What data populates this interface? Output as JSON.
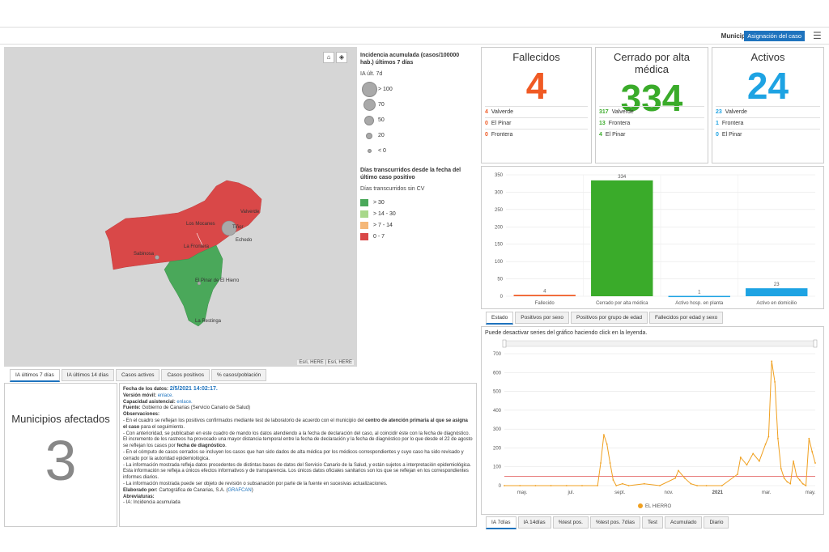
{
  "topbar": {
    "label": "Municipio",
    "button": "Asignación del caso",
    "menu_icon": "hamburger-icon"
  },
  "map": {
    "places": [
      "Valverde",
      "Los Mocanes",
      "Tiñor",
      "La Frontera",
      "Echedo",
      "Sabinosa",
      "El Pinar de El Hierro",
      "La Restinga"
    ],
    "attribution": "Esri, HERE | Esri, HERE",
    "buttons": [
      "home-icon",
      "layers-icon"
    ],
    "colors": {
      "red": "#d94848",
      "green": "#4aa85a"
    },
    "tabs": [
      "IA últimos 7 días",
      "IA últimos 14 días",
      "Casos activos",
      "Casos positivos",
      "% casos/población"
    ]
  },
  "legend": {
    "title1": "Incidencia acumulada (casos/100000 hab.) últimos 7 días",
    "sub1": "IA últ. 7d",
    "circles": [
      "> 100",
      "70",
      "50",
      "20",
      "< 0"
    ],
    "title2": "Días transcurridos desde la fecha del último caso positivo",
    "sub2": "Días transcurridos sin CV",
    "classes": [
      {
        "label": "> 30",
        "color": "#4aa85a"
      },
      {
        "label": "> 14 - 30",
        "color": "#a8d88a"
      },
      {
        "label": "> 7 - 14",
        "color": "#f5b879"
      },
      {
        "label": "0 - 7",
        "color": "#d94848"
      }
    ]
  },
  "kpis": [
    {
      "title": "Fallecidos",
      "value": "4",
      "color": "#f05a24",
      "rows": [
        {
          "n": "4",
          "name": "Valverde"
        },
        {
          "n": "0",
          "name": "El Pinar"
        },
        {
          "n": "0",
          "name": "Frontera"
        }
      ]
    },
    {
      "title": "Cerrado por alta médica",
      "value": "334",
      "color": "#3aab2a",
      "rows": [
        {
          "n": "317",
          "name": "Valverde"
        },
        {
          "n": "13",
          "name": "Frontera"
        },
        {
          "n": "4",
          "name": "El Pinar"
        }
      ]
    },
    {
      "title": "Activos",
      "value": "24",
      "color": "#1ea3e3",
      "rows": [
        {
          "n": "23",
          "name": "Valverde"
        },
        {
          "n": "1",
          "name": "Frontera"
        },
        {
          "n": "0",
          "name": "El Pinar"
        }
      ]
    }
  ],
  "bar_tabs": [
    "Estado",
    "Positivos por sexo",
    "Positivos por grupo de edad",
    "Fallecidos por edad y sexo"
  ],
  "line_note": "Puede desactivar series del gráfico haciendo click en la leyenda.",
  "line_tabs": [
    "IA 7días",
    "IA 14días",
    "%test pos.",
    "%test pos. 7días",
    "Test",
    "Acumulado",
    "Diario"
  ],
  "municipios": {
    "title": "Municipios afectados",
    "value": "3"
  },
  "info": {
    "fecha_label": "Fecha de los datos:",
    "fecha": "2/5/2021 14:02:17.",
    "movil_label": "Versión móvil:",
    "movil": "enlace.",
    "capacidad_label": "Capacidad asistencial:",
    "capacidad": "enlace.",
    "fuente_label": "Fuente:",
    "fuente": "Gobierno de Canarias (Servicio Canario de Salud)",
    "obs_label": "Observaciones:",
    "obs1": "- En el cuadro se reflejan los positivos confirmados mediante test de laboratorio de acuerdo con el municipio del",
    "obs1b": "centro de atención primaria al que se asigna el caso",
    "obs1c": "para el seguimiento.",
    "obs2": "- Con anterioridad, se publicaban en este cuadro de mando los datos atendiendo a la fecha de declaración del caso, al coincidir éste con la fecha de diagnóstico. El incremento de los rastreos ha provocado una mayor distancia temporal entre la fecha de declaración y la fecha de diagnóstico por lo que desde el 22 de agosto se reflejan los casos por",
    "obs2b": "fecha de diagnóstico",
    "obs3": "- En el cómputo de casos cerrados se incluyen los casos que han sido dados de alta médica por los médicos correspondientes y cuyo caso ha sido revisado y cerrado por la autoridad epidemiológica.",
    "obs4": "- La información mostrada refleja datos procedentes de distintas bases de datos del Servicio Canario de la Salud, y están sujetos a interpretación epidemiológica. Esta información se refleja a únicos efectos informativos y de transparencia. Los únicos datos oficiales sanitarios son los que se reflejan en los correspondientes informes diarios.",
    "obs5": "- La información mostrada puede ser objeto de revisión o subsanación por parte de la fuente en sucesivas actualizaciones.",
    "elab_label": "Elaborado por:",
    "elab": "Cartográfica de Canarias, S.A. (",
    "elab_link": "GRAFCAN",
    "elab_end": ")",
    "abrev_label": "Abreviaturas:",
    "abrev": "- IA: Incidencia acumulada"
  },
  "chart_data": [
    {
      "type": "bar",
      "categories": [
        "Fallecido",
        "Cerrado por alta médica",
        "Activo hosp. en planta",
        "Activo en domicilio"
      ],
      "values": [
        4,
        334,
        1,
        23
      ],
      "colors": [
        "#f05a24",
        "#3aab2a",
        "#1ea3e3",
        "#1ea3e3"
      ],
      "ylim": [
        0,
        350
      ],
      "yticks": [
        0,
        50,
        100,
        150,
        200,
        250,
        300,
        350
      ],
      "grid": true
    },
    {
      "type": "line",
      "series": [
        {
          "name": "EL HIERRO",
          "color": "#f0a020",
          "x": [
            0,
            0.05,
            0.1,
            0.15,
            0.2,
            0.25,
            0.3,
            0.31,
            0.32,
            0.33,
            0.34,
            0.35,
            0.36,
            0.38,
            0.4,
            0.45,
            0.5,
            0.55,
            0.56,
            0.58,
            0.6,
            0.62,
            0.65,
            0.7,
            0.75,
            0.76,
            0.78,
            0.8,
            0.82,
            0.84,
            0.85,
            0.86,
            0.87,
            0.88,
            0.89,
            0.9,
            0.91,
            0.92,
            0.93,
            0.94,
            0.95,
            0.96,
            0.97,
            0.98,
            0.99,
            1.0
          ],
          "y": [
            0,
            0,
            0,
            0,
            0,
            0,
            0,
            120,
            270,
            220,
            120,
            30,
            0,
            10,
            0,
            10,
            0,
            40,
            80,
            40,
            10,
            0,
            0,
            0,
            60,
            150,
            110,
            170,
            130,
            220,
            260,
            660,
            550,
            250,
            90,
            40,
            20,
            10,
            130,
            50,
            30,
            10,
            0,
            250,
            180,
            120
          ]
        }
      ],
      "xticks": [
        "may.",
        "jul.",
        "sept.",
        "nov.",
        "2021",
        "mar.",
        "may."
      ],
      "yticks": [
        0,
        100,
        200,
        300,
        400,
        500,
        600,
        700
      ],
      "ylim": [
        0,
        700
      ],
      "reference_line": 50,
      "reference_color": "#e05050",
      "legend": "bottom"
    }
  ]
}
